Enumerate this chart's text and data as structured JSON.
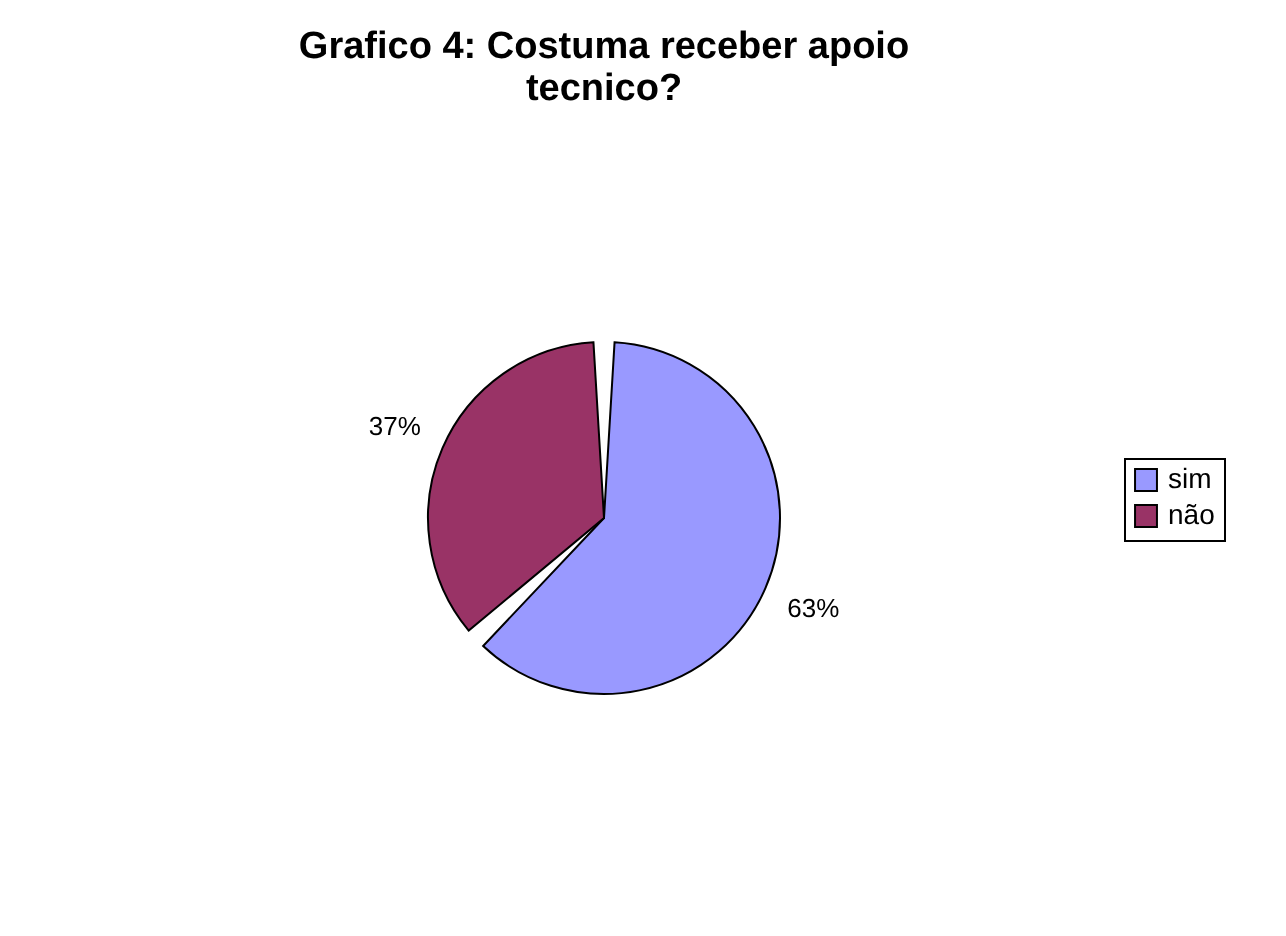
{
  "chart_data": {
    "type": "pie",
    "title": [
      "Grafico 4: Costuma receber apoio",
      "tecnico?"
    ],
    "categories": [
      "sim",
      "não"
    ],
    "values": [
      63,
      37
    ],
    "colors": [
      "#9999ff",
      "#993366"
    ],
    "value_labels": [
      "63%",
      "37%"
    ],
    "legend": "right"
  }
}
